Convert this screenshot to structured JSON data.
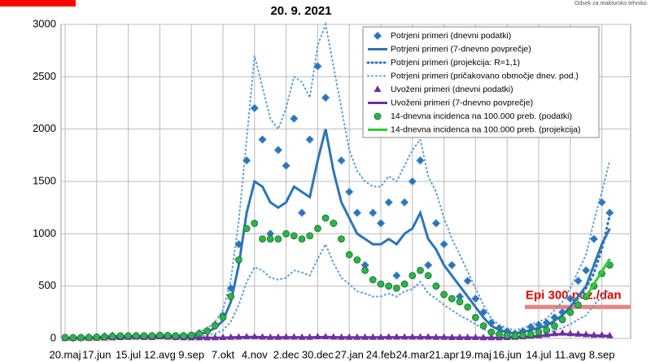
{
  "chart_data": {
    "type": "line",
    "title": "20. 9. 2021",
    "logo_text": "Odsek za reaktorsko tehniko",
    "annotation": {
      "text": "Epi 300 poz./dan",
      "value": 300,
      "color": "#f08080"
    },
    "categories": [
      "20.maj",
      null,
      null,
      null,
      "17.jun",
      null,
      null,
      null,
      "15.jul",
      null,
      null,
      null,
      "12.avg",
      null,
      null,
      null,
      "9.sep",
      null,
      null,
      null,
      "7.okt",
      null,
      null,
      null,
      "4.nov",
      null,
      null,
      null,
      "2.dec",
      null,
      null,
      null,
      "30.dec",
      null,
      null,
      null,
      "27.jan",
      null,
      null,
      null,
      "24.feb",
      null,
      null,
      null,
      "24.mar",
      null,
      null,
      null,
      "21.apr",
      null,
      null,
      null,
      "19.maj",
      null,
      null,
      null,
      "16.jun",
      null,
      null,
      null,
      "14.jul",
      null,
      null,
      null,
      "11.avg",
      null,
      null,
      null,
      "8.sep",
      null
    ],
    "ylim": [
      0,
      3000
    ],
    "yticks": [
      0,
      500,
      1000,
      1500,
      2000,
      2500,
      3000
    ],
    "grid": true,
    "series": [
      {
        "name": "Potrjeni primeri (dnevni podatki)",
        "kind": "scatter",
        "marker": "diamond",
        "color": "#2e75b6",
        "values": [
          6,
          3,
          7,
          10,
          12,
          20,
          25,
          18,
          22,
          25,
          18,
          24,
          30,
          22,
          18,
          25,
          30,
          50,
          75,
          130,
          220,
          480,
          900,
          1700,
          2200,
          1900,
          1000,
          1800,
          1650,
          2100,
          1200,
          1900,
          2600,
          2300,
          1100,
          1700,
          1400,
          1200,
          700,
          1200,
          1100,
          1300,
          600,
          1300,
          1500,
          1700,
          700,
          1100,
          900,
          700,
          400,
          550,
          380,
          250,
          150,
          100,
          70,
          45,
          70,
          110,
          130,
          150,
          200,
          250,
          380,
          550,
          650,
          950,
          1300,
          1200
        ]
      },
      {
        "name": "Potrjeni primeri (7-dnevno povprečje)",
        "kind": "line",
        "color": "#2e75b6",
        "values": [
          5,
          5,
          5,
          8,
          10,
          15,
          20,
          20,
          20,
          20,
          20,
          20,
          25,
          20,
          20,
          20,
          25,
          40,
          60,
          100,
          170,
          350,
          700,
          1200,
          1500,
          1450,
          1300,
          1250,
          1300,
          1450,
          1400,
          1350,
          1700,
          2000,
          1600,
          1300,
          1150,
          1000,
          950,
          900,
          900,
          950,
          900,
          1000,
          1050,
          1200,
          950,
          850,
          700,
          600,
          500,
          400,
          300,
          200,
          120,
          80,
          60,
          50,
          60,
          80,
          100,
          120,
          170,
          220,
          300,
          400,
          500,
          700,
          900,
          1050
        ]
      },
      {
        "name": "Potrjeni primeri (projekcija: R=1,1)",
        "kind": "dotted",
        "color": "#2e75b6",
        "values": [
          null,
          null,
          null,
          null,
          null,
          null,
          null,
          null,
          null,
          null,
          null,
          null,
          null,
          null,
          null,
          null,
          null,
          null,
          null,
          null,
          null,
          null,
          null,
          null,
          null,
          null,
          null,
          null,
          null,
          null,
          null,
          null,
          null,
          null,
          null,
          null,
          null,
          null,
          null,
          null,
          null,
          null,
          null,
          null,
          null,
          null,
          null,
          null,
          null,
          null,
          null,
          null,
          null,
          null,
          null,
          null,
          null,
          null,
          null,
          null,
          null,
          null,
          null,
          null,
          300,
          380,
          480,
          620,
          850,
          1180
        ]
      },
      {
        "name": "Potrjeni primeri (pričakovano območje dnev. pod.)",
        "kind": "range",
        "color": "#5b9bd5",
        "values": [
          8,
          8,
          8,
          13,
          16,
          24,
          32,
          32,
          32,
          32,
          32,
          32,
          40,
          32,
          32,
          32,
          40,
          64,
          96,
          160,
          270,
          560,
          1120,
          1900,
          2700,
          2400,
          2100,
          2000,
          2200,
          2500,
          2450,
          2300,
          2800,
          3000,
          2600,
          2200,
          1800,
          1600,
          1500,
          1450,
          1450,
          1550,
          1500,
          1650,
          1800,
          1900,
          1550,
          1400,
          1150,
          950,
          800,
          640,
          480,
          320,
          190,
          130,
          96,
          80,
          96,
          130,
          160,
          190,
          270,
          350,
          480,
          640,
          800,
          1120,
          1400,
          1700
        ],
        "lower": [
          2,
          2,
          2,
          4,
          5,
          7,
          9,
          9,
          9,
          9,
          9,
          9,
          11,
          9,
          9,
          9,
          11,
          18,
          27,
          45,
          77,
          160,
          320,
          540,
          680,
          650,
          580,
          560,
          580,
          650,
          630,
          600,
          760,
          900,
          720,
          580,
          520,
          450,
          430,
          400,
          400,
          430,
          400,
          450,
          470,
          540,
          430,
          380,
          320,
          270,
          220,
          180,
          135,
          90,
          54,
          36,
          27,
          22,
          27,
          36,
          45,
          54,
          77,
          100,
          135,
          180,
          220,
          320,
          400,
          470
        ]
      },
      {
        "name": "Uvoženi primeri (dnevni podatki)",
        "kind": "scatter",
        "marker": "triangle",
        "color": "#7030a0",
        "values": [
          0,
          0,
          1,
          2,
          2,
          3,
          5,
          8,
          10,
          12,
          10,
          8,
          15,
          12,
          8,
          6,
          5,
          5,
          5,
          6,
          8,
          10,
          12,
          15,
          15,
          12,
          10,
          10,
          12,
          12,
          10,
          10,
          15,
          15,
          12,
          10,
          10,
          10,
          10,
          10,
          10,
          12,
          12,
          12,
          12,
          12,
          12,
          10,
          10,
          8,
          8,
          8,
          8,
          6,
          6,
          6,
          8,
          10,
          15,
          20,
          25,
          35,
          45,
          50,
          45,
          40,
          35,
          30,
          30,
          25
        ]
      },
      {
        "name": "Uvoženi primeri (7-dnevno povprečje)",
        "kind": "line",
        "color": "#7030a0",
        "values": [
          0,
          0,
          1,
          1,
          2,
          3,
          4,
          6,
          8,
          9,
          9,
          8,
          10,
          9,
          8,
          6,
          5,
          5,
          5,
          6,
          7,
          9,
          11,
          13,
          13,
          12,
          10,
          10,
          11,
          11,
          10,
          10,
          12,
          13,
          12,
          10,
          10,
          10,
          10,
          10,
          10,
          11,
          11,
          11,
          11,
          11,
          11,
          10,
          10,
          8,
          8,
          8,
          7,
          6,
          6,
          6,
          7,
          9,
          12,
          16,
          22,
          30,
          38,
          42,
          40,
          36,
          32,
          28,
          26,
          24
        ]
      },
      {
        "name": "14-dnevna incidenca na 100.000 preb. (podatki)",
        "kind": "scatter",
        "marker": "circle",
        "color": "#2db34a",
        "values": [
          10,
          8,
          8,
          10,
          12,
          15,
          20,
          25,
          25,
          25,
          25,
          25,
          30,
          28,
          25,
          25,
          30,
          45,
          70,
          120,
          200,
          400,
          750,
          1050,
          1100,
          950,
          950,
          950,
          1000,
          980,
          950,
          980,
          1050,
          1150,
          1100,
          950,
          800,
          750,
          650,
          560,
          520,
          500,
          480,
          520,
          600,
          650,
          600,
          500,
          420,
          380,
          350,
          300,
          200,
          120,
          60,
          40,
          30,
          25,
          30,
          40,
          60,
          80,
          120,
          180,
          250,
          320,
          400,
          500,
          620,
          700
        ]
      },
      {
        "name": "14-dnevna incidenca na 100.000 preb. (projekcija)",
        "kind": "line",
        "color": "#33cc33",
        "values": [
          null,
          null,
          null,
          null,
          null,
          null,
          null,
          null,
          null,
          null,
          null,
          null,
          null,
          null,
          null,
          null,
          null,
          null,
          null,
          null,
          null,
          null,
          null,
          null,
          null,
          null,
          null,
          null,
          null,
          null,
          null,
          null,
          null,
          null,
          null,
          null,
          null,
          null,
          null,
          null,
          null,
          null,
          null,
          null,
          null,
          null,
          null,
          null,
          null,
          null,
          null,
          null,
          null,
          null,
          null,
          null,
          null,
          null,
          null,
          null,
          null,
          null,
          null,
          null,
          null,
          null,
          400,
          520,
          640,
          760
        ]
      }
    ]
  }
}
